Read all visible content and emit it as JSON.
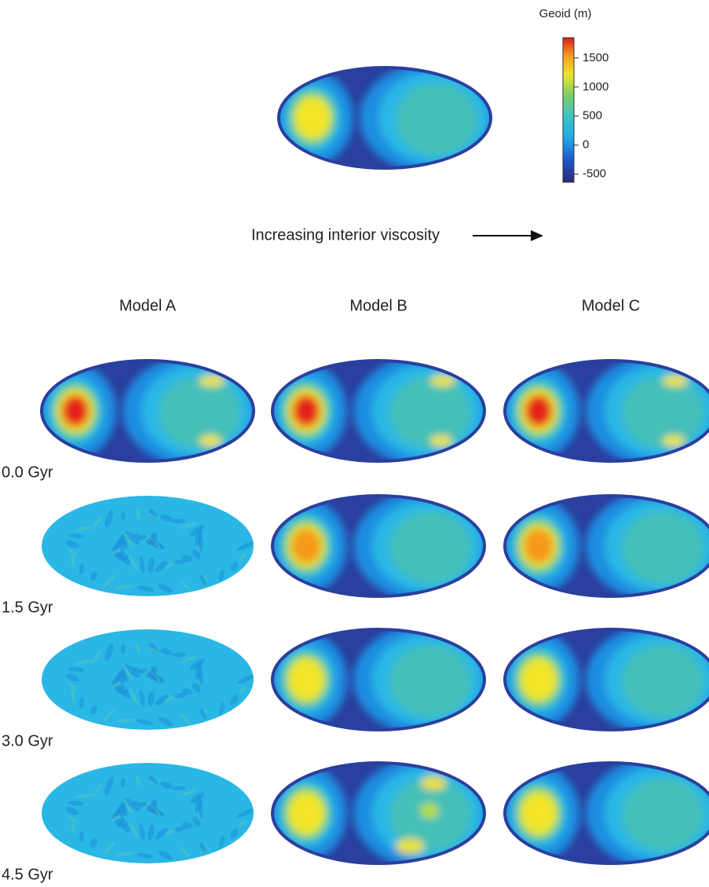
{
  "colorbar": {
    "label": "Geoid (m)",
    "lim": [
      -640,
      1850
    ],
    "ticks": [
      -500,
      0,
      500,
      1000,
      1500
    ]
  },
  "arrow_label": "Increasing interior viscosity",
  "columns": [
    "Model A",
    "Model B",
    "Model C"
  ],
  "rows": [
    "0.0 Gyr",
    "1.5 Gyr",
    "3.0 Gyr",
    "4.5 Gyr"
  ]
}
